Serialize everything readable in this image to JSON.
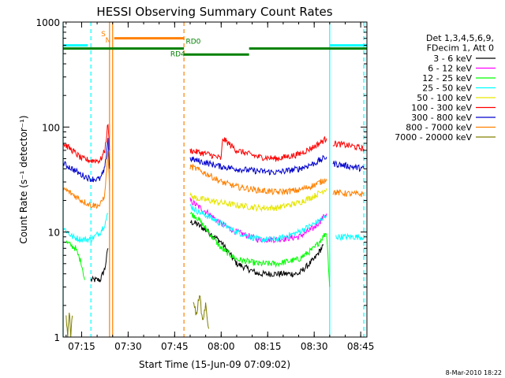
{
  "chart_data": {
    "type": "line",
    "title": "HESSI Observing Summary Count Rates",
    "xlabel": "Start Time (15-Jun-09 07:09:02)",
    "ylabel": "Count Rate (s⁻¹ detector⁻¹)",
    "y_scale": "log",
    "ylim": [
      1,
      1000
    ],
    "xlim": [
      "07:09:02",
      "08:47:00"
    ],
    "x_ticks": [
      "07:15",
      "07:30",
      "07:45",
      "08:00",
      "08:15",
      "08:30",
      "08:45"
    ],
    "y_ticks": [
      "1",
      "10",
      "100",
      "1000"
    ],
    "legend": {
      "placement": "right",
      "header": [
        "Det 1,3,4,5,6,9,",
        "FDecim 1, Att 0"
      ],
      "entries": [
        {
          "label": "3 - 6 keV",
          "color": "#000000"
        },
        {
          "label": "6 - 12 keV",
          "color": "#ff00ff"
        },
        {
          "label": "12 - 25 keV",
          "color": "#00ff00"
        },
        {
          "label": "25 - 50 keV",
          "color": "#00ffff"
        },
        {
          "label": "50 - 100 keV",
          "color": "#e6e600"
        },
        {
          "label": "100 - 300 keV",
          "color": "#ff0000"
        },
        {
          "label": "300 - 800 keV",
          "color": "#0000cc"
        },
        {
          "label": "800 - 7000 keV",
          "color": "#ff8000"
        },
        {
          "label": "7000 - 20000 keV",
          "color": "#808000"
        }
      ]
    },
    "flag_labels": {
      "saa": "S",
      "night": "N",
      "rd4": "RD4",
      "rd0": "RD0"
    },
    "flags": {
      "saa_bar": {
        "color": "#00ffff",
        "intervals": [
          [
            "07:09:02",
            "07:17:00"
          ],
          [
            "08:35:00",
            "08:47:00"
          ]
        ],
        "level": 600
      },
      "night_bar": {
        "color": "#ff8000",
        "intervals": [
          [
            "07:25:30",
            "07:48:00"
          ]
        ],
        "level": 700
      },
      "decim_bar": {
        "color": "#008000",
        "intervals": [
          [
            "07:09:02",
            "07:48:00"
          ],
          [
            "08:09:00",
            "08:47:00"
          ]
        ],
        "level": 560
      },
      "decim_low_bar": {
        "color": "#008000",
        "intervals": [
          [
            "07:48:00",
            "08:09:00"
          ]
        ],
        "level": 490
      }
    },
    "vlines": [
      {
        "t": "07:09:02",
        "color": "#00ffff",
        "dash": false
      },
      {
        "t": "07:18:00",
        "color": "#00ffff",
        "dash": true
      },
      {
        "t": "07:24:00",
        "color": "#ff8000",
        "dash": false
      },
      {
        "t": "07:25:00",
        "color": "#ff8000",
        "dash": false
      },
      {
        "t": "07:48:00",
        "color": "#ff8000",
        "dash": true
      },
      {
        "t": "08:35:00",
        "color": "#00ffff",
        "dash": false
      },
      {
        "t": "08:46:00",
        "color": "#00ffff",
        "dash": true
      }
    ],
    "series": [
      {
        "name": "3 - 6 keV",
        "color": "#000000",
        "segments": [
          {
            "t": [
              "07:09:02",
              "07:14:00",
              "07:18:00",
              "07:21:00",
              "07:22:30",
              "07:23:30"
            ],
            "v": [
              null,
              null,
              3.5,
              3.5,
              4.5,
              7
            ]
          },
          {
            "t": [
              "07:50:00",
              "07:52:00",
              "07:56:00",
              "08:00:00",
              "08:05:00",
              "08:12:00",
              "08:18:00",
              "08:25:00",
              "08:30:00",
              "08:33:00"
            ],
            "v": [
              12.5,
              12,
              10,
              8,
              5,
              4,
              4,
              4,
              5.5,
              7.5
            ]
          }
        ]
      },
      {
        "name": "6 - 12 keV",
        "color": "#ff00ff",
        "segments": [
          {
            "t": [
              "07:50:00",
              "07:52:00",
              "07:56:00",
              "08:00:00",
              "08:05:00",
              "08:12:00",
              "08:18:00",
              "08:25:00",
              "08:30:00",
              "08:34:00"
            ],
            "v": [
              20,
              18,
              15,
              12,
              10,
              8.5,
              8.5,
              9,
              11,
              15
            ]
          }
        ]
      },
      {
        "name": "12 - 25 keV",
        "color": "#00ff00",
        "segments": [
          {
            "t": [
              "07:10:00",
              "07:13:00",
              "07:15:00",
              "07:16:00"
            ],
            "v": [
              8,
              7,
              5,
              3.5
            ]
          },
          {
            "t": [
              "07:50:00",
              "07:52:00",
              "07:56:00",
              "08:00:00",
              "08:05:00",
              "08:12:00",
              "08:18:00",
              "08:25:00",
              "08:30:00",
              "08:34:00",
              "08:35:00"
            ],
            "v": [
              15,
              14,
              10,
              7,
              5.5,
              5,
              5,
              5.5,
              7,
              10,
              3
            ]
          }
        ]
      },
      {
        "name": "25 - 50 keV",
        "color": "#00ffff",
        "segments": [
          {
            "t": [
              "07:09:02",
              "07:12:00",
              "07:15:00",
              "07:18:00",
              "07:21:00",
              "07:22:30",
              "07:23:30"
            ],
            "v": [
              11,
              9,
              8.5,
              8.5,
              10,
              12,
              15
            ]
          },
          {
            "t": [
              "07:50:00",
              "07:52:00",
              "07:56:00",
              "08:00:00",
              "08:05:00",
              "08:12:00",
              "08:18:00",
              "08:25:00",
              "08:30:00",
              "08:34:00"
            ],
            "v": [
              18,
              16,
              14,
              12,
              10,
              8.5,
              8.5,
              10,
              12,
              14
            ]
          },
          {
            "t": [
              "08:37:00",
              "08:42:00",
              "08:46:00"
            ],
            "v": [
              9,
              9,
              9
            ]
          }
        ]
      },
      {
        "name": "50 - 100 keV",
        "color": "#e6e600",
        "segments": [
          {
            "t": [
              "07:50:00",
              "07:52:00",
              "07:56:00",
              "08:00:00",
              "08:05:00",
              "08:12:00",
              "08:18:00",
              "08:25:00",
              "08:30:00",
              "08:34:00"
            ],
            "v": [
              22,
              21,
              20,
              19,
              18,
              17,
              17,
              19,
              22,
              26
            ]
          }
        ]
      },
      {
        "name": "100 - 300 keV",
        "color": "#ff0000",
        "segments": [
          {
            "t": [
              "07:09:02",
              "07:12:00",
              "07:15:00",
              "07:18:00",
              "07:21:00",
              "07:22:30",
              "07:23:30",
              "07:24:00"
            ],
            "v": [
              70,
              60,
              50,
              48,
              48,
              60,
              110,
              60
            ]
          },
          {
            "t": [
              "07:50:00",
              "07:52:00",
              "07:56:00",
              "08:00:00",
              "08:00:30",
              "08:05:00",
              "08:12:00",
              "08:18:00",
              "08:25:00",
              "08:30:00",
              "08:34:00"
            ],
            "v": [
              60,
              58,
              55,
              50,
              78,
              60,
              52,
              50,
              55,
              65,
              78
            ]
          },
          {
            "t": [
              "08:36:00",
              "08:42:00",
              "08:46:00"
            ],
            "v": [
              70,
              66,
              62
            ]
          }
        ]
      },
      {
        "name": "300 - 800 keV",
        "color": "#0000cc",
        "segments": [
          {
            "t": [
              "07:09:02",
              "07:12:00",
              "07:15:00",
              "07:18:00",
              "07:21:00",
              "07:22:30",
              "07:23:30",
              "07:24:00"
            ],
            "v": [
              45,
              40,
              35,
              32,
              32,
              40,
              80,
              40
            ]
          },
          {
            "t": [
              "07:50:00",
              "07:52:00",
              "07:56:00",
              "08:00:00",
              "08:05:00",
              "08:12:00",
              "08:18:00",
              "08:25:00",
              "08:30:00",
              "08:34:00"
            ],
            "v": [
              50,
              48,
              45,
              42,
              40,
              38,
              37,
              40,
              45,
              52
            ]
          },
          {
            "t": [
              "08:36:00",
              "08:42:00",
              "08:46:00"
            ],
            "v": [
              45,
              42,
              40
            ]
          }
        ]
      },
      {
        "name": "800 - 7000 keV",
        "color": "#ff8000",
        "segments": [
          {
            "t": [
              "07:09:02",
              "07:12:00",
              "07:15:00",
              "07:18:00",
              "07:21:00",
              "07:22:30",
              "07:23:30",
              "07:24:00"
            ],
            "v": [
              26,
              23,
              20,
              18,
              18,
              23,
              60,
              25
            ]
          },
          {
            "t": [
              "07:50:00",
              "07:52:00",
              "07:56:00",
              "08:00:00",
              "08:05:00",
              "08:12:00",
              "08:18:00",
              "08:25:00",
              "08:30:00",
              "08:34:00"
            ],
            "v": [
              42,
              40,
              35,
              30,
              27,
              25,
              24,
              25,
              28,
              32
            ]
          },
          {
            "t": [
              "08:36:00",
              "08:42:00",
              "08:46:00"
            ],
            "v": [
              24,
              23,
              23
            ]
          }
        ]
      },
      {
        "name": "7000 - 20000 keV",
        "color": "#808000",
        "segments": [
          {
            "t": [
              "07:10:00",
              "07:10:30",
              "07:11:00",
              "07:11:30",
              "07:12:00"
            ],
            "v": [
              1.6,
              1.0,
              1.8,
              1.0,
              1.6
            ]
          },
          {
            "t": [
              "07:51:00",
              "07:52:00",
              "07:53:00",
              "07:54:00",
              "07:55:00",
              "07:56:00"
            ],
            "v": [
              2.3,
              1.6,
              2.6,
              1.4,
              2.0,
              1.2
            ]
          }
        ]
      }
    ]
  },
  "footer": {
    "date": "8-Mar-2010 18:22"
  }
}
